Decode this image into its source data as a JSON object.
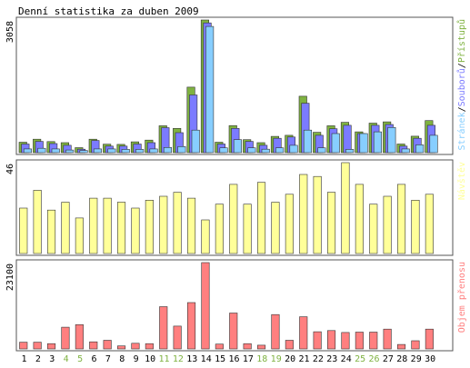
{
  "title": "Denní statistika za duben 2009",
  "colors": {
    "hits": "#7fb241",
    "files": "#7b7bff",
    "pages": "#87ceff",
    "visits": "#ffff99",
    "kbytes": "#ff7f7f",
    "weekend_label": "#7fb241",
    "weekday_label": "#000000",
    "frame": "#555555",
    "bar_outline": "#333333"
  },
  "chart_data": [
    {
      "type": "bar",
      "panel": "top",
      "ymax_label": "3058",
      "ylim": [
        0,
        3058
      ],
      "legend": [
        {
          "text": "Stránek",
          "color_key": "pages"
        },
        {
          "text": "/",
          "color_key": "weekday_label"
        },
        {
          "text": "Souborů",
          "color_key": "files"
        },
        {
          "text": "/",
          "color_key": "weekday_label"
        },
        {
          "text": "Přístupů",
          "color_key": "hits"
        }
      ],
      "series": [
        {
          "name": "Přístupů",
          "color_key": "hits",
          "values": [
            240,
            310,
            255,
            230,
            115,
            310,
            195,
            190,
            250,
            290,
            620,
            560,
            1510,
            3058,
            240,
            625,
            300,
            230,
            375,
            400,
            1300,
            470,
            620,
            700,
            480,
            680,
            710,
            200,
            380,
            740
          ]
        },
        {
          "name": "Souborů",
          "color_key": "files",
          "values": [
            200,
            260,
            210,
            170,
            80,
            280,
            150,
            150,
            200,
            230,
            575,
            460,
            1330,
            2990,
            200,
            560,
            260,
            170,
            330,
            360,
            1140,
            400,
            550,
            630,
            440,
            630,
            650,
            150,
            330,
            630
          ]
        },
        {
          "name": "Stránek",
          "color_key": "pages",
          "values": [
            85,
            100,
            85,
            60,
            50,
            85,
            85,
            75,
            75,
            85,
            120,
            140,
            520,
            2910,
            110,
            300,
            110,
            80,
            110,
            170,
            520,
            110,
            440,
            75,
            440,
            480,
            580,
            85,
            180,
            400
          ]
        }
      ]
    },
    {
      "type": "bar",
      "panel": "middle",
      "ymax_label": "46",
      "ylim": [
        0,
        46
      ],
      "legend": [
        {
          "text": "Návštěv",
          "color_key": "visits"
        }
      ],
      "series": [
        {
          "name": "Návštěv",
          "color_key": "visits",
          "values": [
            23,
            32,
            22,
            26,
            18,
            28,
            28,
            26,
            23,
            27,
            29,
            31,
            28,
            17,
            25,
            35,
            25,
            36,
            26,
            30,
            40,
            39,
            31,
            46,
            35,
            25,
            29,
            35,
            27,
            30
          ]
        }
      ]
    },
    {
      "type": "bar",
      "panel": "bottom",
      "ymax_label": "23100",
      "ylim": [
        0,
        23100
      ],
      "legend": [
        {
          "text": "Objem přenosu",
          "color_key": "kbytes"
        }
      ],
      "series": [
        {
          "name": "Objem přenosu",
          "color_key": "kbytes",
          "values": [
            1800,
            1800,
            1400,
            5800,
            6500,
            1900,
            2300,
            800,
            1500,
            1400,
            11300,
            6100,
            12400,
            23100,
            1300,
            9600,
            1400,
            1000,
            9200,
            2300,
            8600,
            4600,
            4900,
            4400,
            4500,
            4500,
            5300,
            1200,
            2200,
            5300
          ]
        }
      ]
    }
  ],
  "x_labels": [
    "1",
    "2",
    "3",
    "4",
    "5",
    "6",
    "7",
    "8",
    "9",
    "10",
    "11",
    "12",
    "13",
    "14",
    "15",
    "16",
    "17",
    "18",
    "19",
    "20",
    "21",
    "22",
    "23",
    "24",
    "25",
    "26",
    "27",
    "28",
    "29",
    "30"
  ],
  "weekend_days": [
    4,
    5,
    11,
    12,
    18,
    19,
    25,
    26
  ]
}
